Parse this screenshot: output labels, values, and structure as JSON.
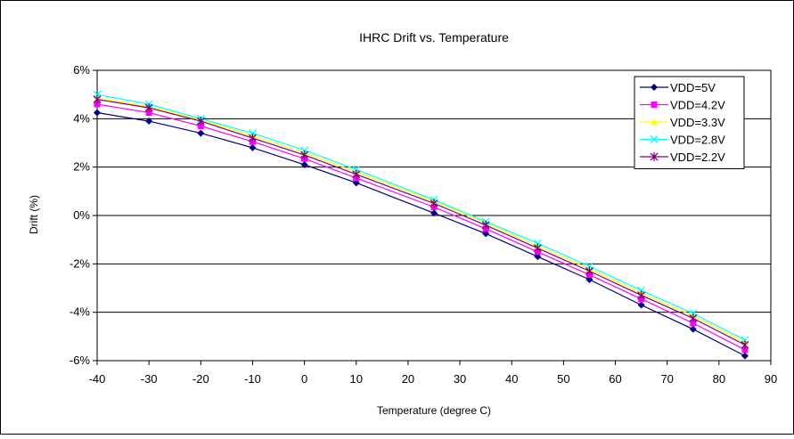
{
  "chart_data": {
    "type": "line",
    "title": "IHRC Drift vs. Temperature",
    "xlabel": "Temperature (degree C)",
    "ylabel": "Drift (%)",
    "xlim": [
      -40,
      90
    ],
    "ylim": [
      -6,
      6
    ],
    "x_ticks": [
      -40,
      -30,
      -20,
      -10,
      0,
      10,
      20,
      30,
      40,
      50,
      60,
      70,
      80,
      90
    ],
    "x_tick_labels": [
      "-40",
      "-30",
      "-20",
      "-10",
      "0",
      "10",
      "20",
      "30",
      "40",
      "50",
      "60",
      "70",
      "80",
      "90"
    ],
    "y_ticks": [
      -6,
      -4,
      -2,
      0,
      2,
      4,
      6
    ],
    "y_tick_labels": [
      "-6%",
      "-4%",
      "-2%",
      "0%",
      "2%",
      "4%",
      "6%"
    ],
    "grid": "horizontal",
    "legend_position": "top-right",
    "x": [
      -40,
      -30,
      -20,
      -10,
      0,
      10,
      25,
      35,
      45,
      55,
      65,
      75,
      85
    ],
    "series": [
      {
        "name": "VDD=5V",
        "color": "#000080",
        "marker": "diamond",
        "values": [
          4.25,
          3.9,
          3.4,
          2.8,
          2.1,
          1.35,
          0.1,
          -0.75,
          -1.7,
          -2.65,
          -3.7,
          -4.7,
          -5.8
        ]
      },
      {
        "name": "VDD=4.2V",
        "color": "#ff00ff",
        "marker": "square",
        "values": [
          4.6,
          4.25,
          3.7,
          3.05,
          2.35,
          1.55,
          0.35,
          -0.55,
          -1.5,
          -2.45,
          -3.45,
          -4.45,
          -5.55
        ]
      },
      {
        "name": "VDD=3.3V",
        "color": "#ffff00",
        "marker": "triangle",
        "values": [
          4.85,
          4.5,
          3.95,
          3.3,
          2.6,
          1.8,
          0.6,
          -0.3,
          -1.25,
          -2.2,
          -3.2,
          -4.15,
          -5.25
        ]
      },
      {
        "name": "VDD=2.8V",
        "color": "#00ffff",
        "marker": "x",
        "values": [
          5.0,
          4.6,
          4.0,
          3.4,
          2.7,
          1.9,
          0.65,
          -0.25,
          -1.15,
          -2.1,
          -3.1,
          -4.05,
          -5.15
        ]
      },
      {
        "name": "VDD=2.2V",
        "color": "#800080",
        "marker": "star",
        "values": [
          4.8,
          4.45,
          3.9,
          3.2,
          2.5,
          1.7,
          0.5,
          -0.4,
          -1.35,
          -2.3,
          -3.3,
          -4.25,
          -5.35
        ]
      }
    ]
  }
}
